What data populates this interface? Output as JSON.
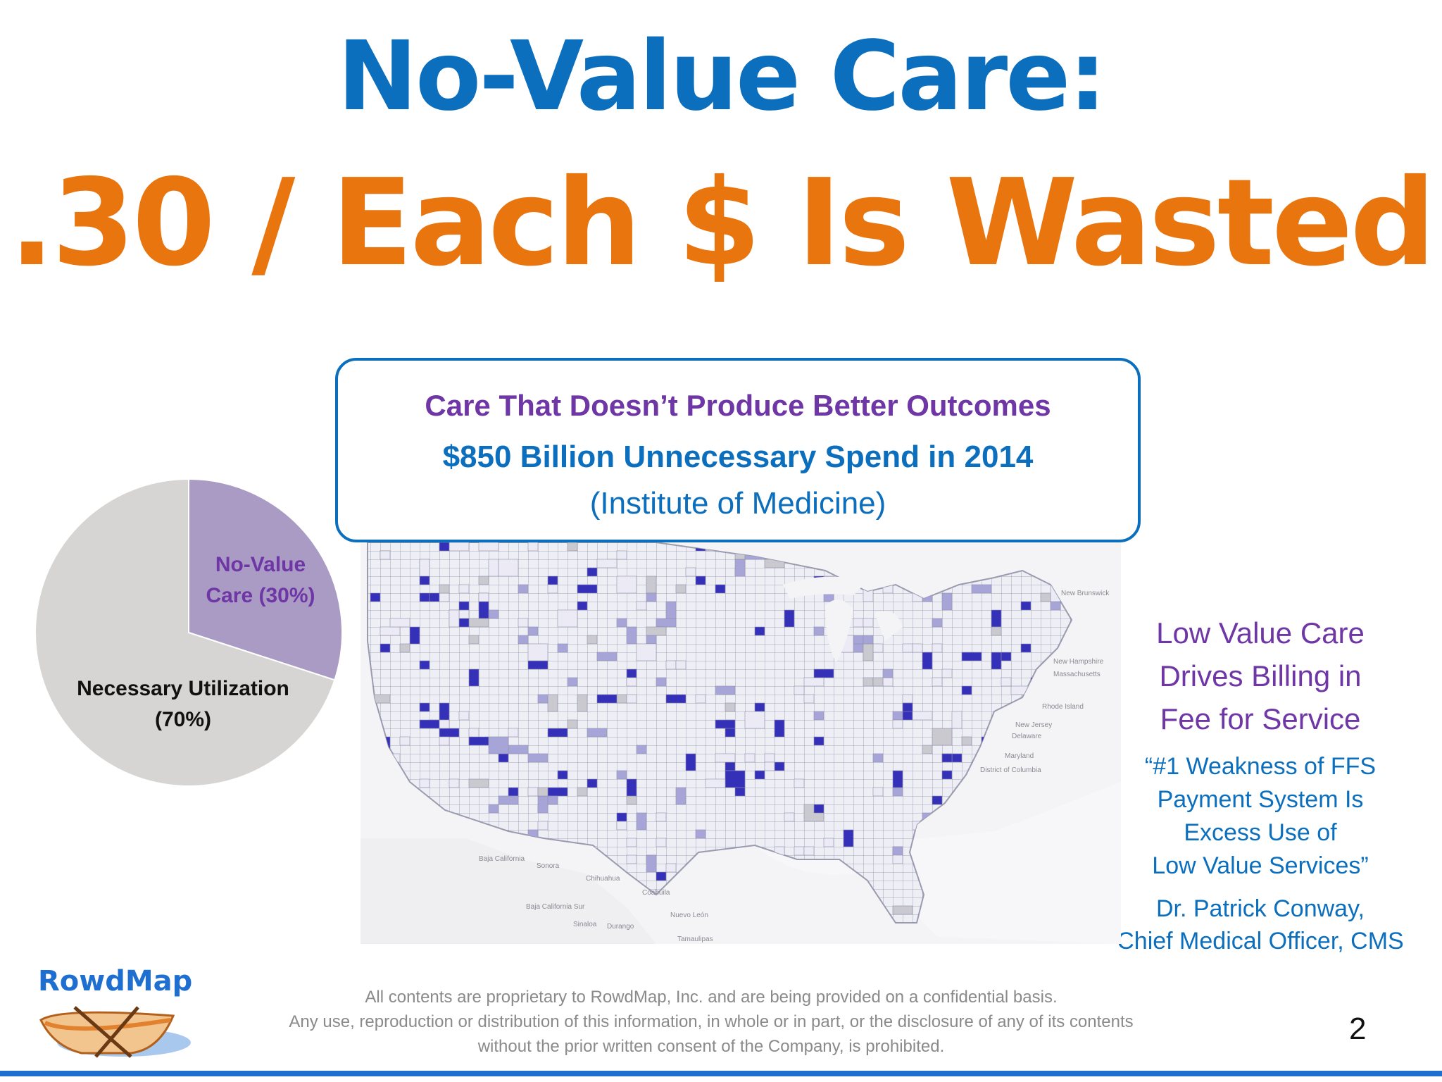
{
  "header": {
    "title": "No-Value Care:",
    "subtitle": ".30 / Each $ Is Wasted"
  },
  "callout": {
    "line1": "Care That Doesn’t Produce Better Outcomes",
    "line2": "$850 Billion  Unnecessary Spend in 2014",
    "line3": "(Institute of Medicine)"
  },
  "pie": {
    "slices": [
      {
        "label_line1": "No-Value",
        "label_line2": "Care (30%)",
        "value": 30,
        "color": "#a99bc4"
      },
      {
        "label_line1": "Necessary Utilization",
        "label_line2": "(70%)",
        "value": 70,
        "color": "#d6d5d3"
      }
    ]
  },
  "map": {
    "states": [
      "New Brunswick",
      "New Hampshire",
      "Massachusetts",
      "Rhode Island",
      "New Jersey",
      "Delaware",
      "Maryland",
      "District of Columbia"
    ],
    "mexico": [
      "Baja California",
      "Sonora",
      "Chihuahua",
      "Coahuila",
      "Baja California Sur",
      "Sinaloa",
      "Durango",
      "Nuevo León",
      "Tamaulipas"
    ],
    "colors": {
      "light": "#ecebf5",
      "mid": "#a7a5d8",
      "dark": "#3530b8",
      "gray": "#c9c9cf"
    }
  },
  "sidebar": {
    "heading1": "Low Value Care",
    "heading2": "Drives Billing in",
    "heading3": "Fee for Service",
    "quote1": "“#1 Weakness  of FFS",
    "quote2": "Payment System Is",
    "quote3": "Excess Use of",
    "quote4": "Low Value Services”",
    "attribution1": "Dr. Patrick Conway,",
    "attribution2": "Chief Medical Officer, CMS"
  },
  "logo": {
    "text": "RowdMap"
  },
  "footer": {
    "line1": "All contents are proprietary  to RowdMap, Inc. and are being provided on a confidential  basis.",
    "line2": "Any use, reproduction  or distribution  of this information,  in whole or in part, or the disclosure  of any of its contents",
    "line3": "without  the prior  written  consent  of the Company, is prohibited."
  },
  "page_number": "2",
  "colors": {
    "blue": "#0b6fbd",
    "orange": "#e9750f",
    "purple": "#6f36a6",
    "bar": "#1f6fd1"
  }
}
